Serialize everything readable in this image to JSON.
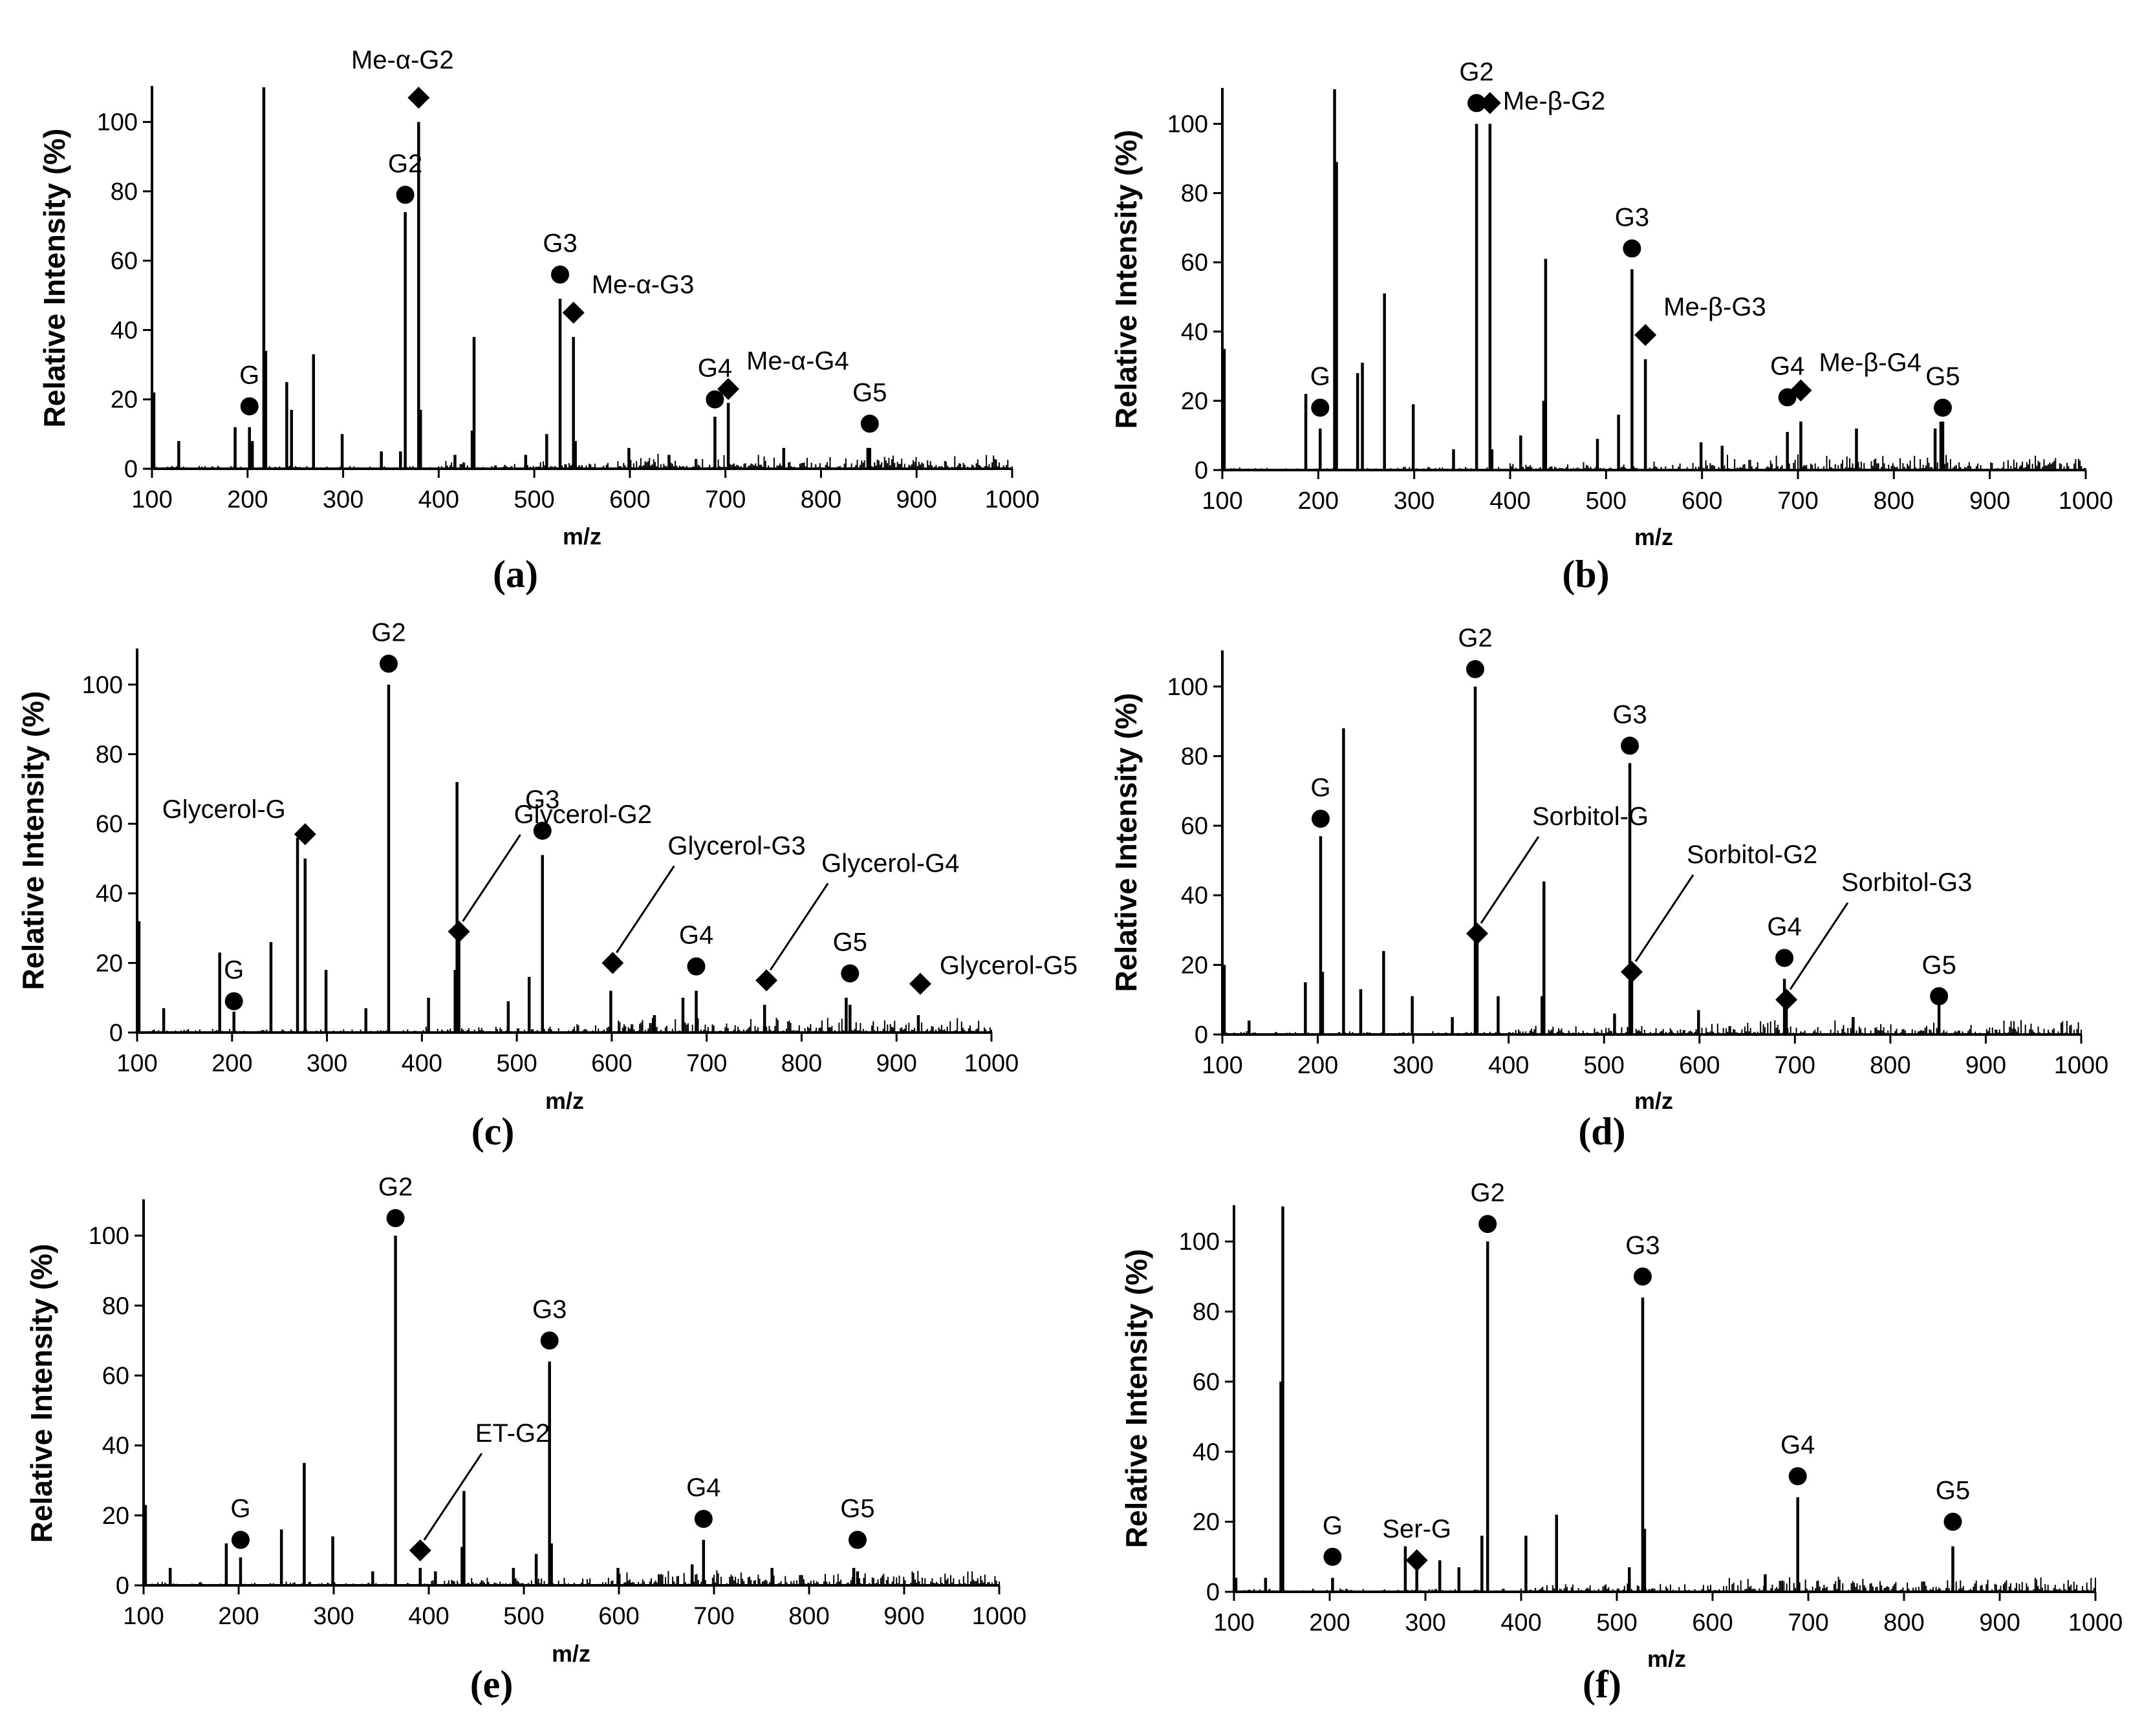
{
  "chart_data": [
    {
      "type": "bar",
      "panel_label": "(a)",
      "xlabel": "m/z",
      "ylabel": "Relative Intensity (%)",
      "xlim": [
        100,
        1000
      ],
      "ylim": [
        0,
        110
      ],
      "xticks": [
        100,
        200,
        300,
        400,
        500,
        600,
        700,
        800,
        900,
        1000
      ],
      "yticks": [
        0,
        20,
        40,
        60,
        80,
        100
      ],
      "peaks": [
        [
          102,
          22
        ],
        [
          128,
          8
        ],
        [
          187,
          12
        ],
        [
          202,
          12
        ],
        [
          205,
          8
        ],
        [
          217,
          110
        ],
        [
          219,
          34
        ],
        [
          241,
          25
        ],
        [
          246,
          17
        ],
        [
          269,
          33
        ],
        [
          299,
          10
        ],
        [
          340,
          5
        ],
        [
          360,
          5
        ],
        [
          365,
          74
        ],
        [
          379,
          100
        ],
        [
          381,
          17
        ],
        [
          417,
          4
        ],
        [
          435,
          11
        ],
        [
          437,
          38
        ],
        [
          491,
          4
        ],
        [
          513,
          10
        ],
        [
          527,
          49
        ],
        [
          541,
          38
        ],
        [
          543,
          8
        ],
        [
          599,
          6
        ],
        [
          641,
          4
        ],
        [
          689,
          15
        ],
        [
          703,
          19
        ],
        [
          761,
          6
        ],
        [
          849,
          6
        ],
        [
          851,
          6
        ]
      ],
      "annotations": [
        {
          "label": "G",
          "marker": "circle",
          "x": 202,
          "y": 18
        },
        {
          "label": "G2",
          "marker": "circle",
          "x": 365,
          "y": 79
        },
        {
          "label": "Me-α-G2",
          "marker": "diamond",
          "x": 379,
          "y": 107
        },
        {
          "label": "G3",
          "marker": "circle",
          "x": 527,
          "y": 56
        },
        {
          "label": "Me-α-G3",
          "marker": "diamond",
          "x": 541,
          "y": 45
        },
        {
          "label": "G4",
          "marker": "circle",
          "x": 689,
          "y": 20
        },
        {
          "label": "Me-α-G4",
          "marker": "diamond",
          "x": 703,
          "y": 23
        },
        {
          "label": "G5",
          "marker": "circle",
          "x": 851,
          "y": 13
        }
      ]
    },
    {
      "type": "bar",
      "panel_label": "(b)",
      "xlabel": "m/z",
      "ylabel": "Relative Intensity (%)",
      "xlim": [
        100,
        1000
      ],
      "ylim": [
        0,
        110
      ],
      "xticks": [
        100,
        200,
        300,
        400,
        500,
        600,
        700,
        800,
        900,
        1000
      ],
      "yticks": [
        0,
        20,
        40,
        60,
        80,
        100
      ],
      "peaks": [
        [
          102,
          35
        ],
        [
          187,
          22
        ],
        [
          202,
          12
        ],
        [
          217,
          110
        ],
        [
          219,
          89
        ],
        [
          241,
          28
        ],
        [
          246,
          31
        ],
        [
          269,
          51
        ],
        [
          299,
          19
        ],
        [
          341,
          6
        ],
        [
          365,
          100
        ],
        [
          379,
          100
        ],
        [
          381,
          6
        ],
        [
          411,
          10
        ],
        [
          435,
          20
        ],
        [
          437,
          61
        ],
        [
          491,
          9
        ],
        [
          513,
          16
        ],
        [
          527,
          58
        ],
        [
          541,
          32
        ],
        [
          599,
          8
        ],
        [
          621,
          7
        ],
        [
          689,
          11
        ],
        [
          703,
          14
        ],
        [
          761,
          12
        ],
        [
          843,
          12
        ],
        [
          849,
          14
        ],
        [
          851,
          14
        ]
      ],
      "annotations": [
        {
          "label": "G",
          "marker": "circle",
          "x": 202,
          "y": 18
        },
        {
          "label": "G2",
          "marker": "circle",
          "x": 365,
          "y": 106
        },
        {
          "label": "Me-β-G2",
          "marker": "diamond",
          "x": 379,
          "y": 106
        },
        {
          "label": "G3",
          "marker": "circle",
          "x": 527,
          "y": 64
        },
        {
          "label": "Me-β-G3",
          "marker": "diamond",
          "x": 541,
          "y": 39
        },
        {
          "label": "G4",
          "marker": "circle",
          "x": 689,
          "y": 21
        },
        {
          "label": "Me-β-G4",
          "marker": "diamond",
          "x": 703,
          "y": 23
        },
        {
          "label": "G5",
          "marker": "circle",
          "x": 851,
          "y": 18
        }
      ]
    },
    {
      "type": "bar",
      "panel_label": "(c)",
      "xlabel": "m/z",
      "ylabel": "Relative Intensity (%)",
      "xlim": [
        100,
        1000
      ],
      "ylim": [
        0,
        110
      ],
      "xticks": [
        100,
        200,
        300,
        400,
        500,
        600,
        700,
        800,
        900,
        1000
      ],
      "yticks": [
        0,
        20,
        40,
        60,
        80,
        100
      ],
      "peaks": [
        [
          102,
          32
        ],
        [
          128,
          7
        ],
        [
          187,
          23
        ],
        [
          202,
          6
        ],
        [
          241,
          26
        ],
        [
          269,
          56
        ],
        [
          277,
          50
        ],
        [
          299,
          18
        ],
        [
          341,
          7
        ],
        [
          365,
          100
        ],
        [
          407,
          10
        ],
        [
          435,
          18
        ],
        [
          437,
          72
        ],
        [
          439,
          30
        ],
        [
          491,
          9
        ],
        [
          513,
          16
        ],
        [
          527,
          51
        ],
        [
          599,
          12
        ],
        [
          645,
          5
        ],
        [
          675,
          10
        ],
        [
          689,
          12
        ],
        [
          761,
          8
        ],
        [
          847,
          10
        ],
        [
          851,
          8
        ],
        [
          923,
          5
        ]
      ],
      "annotations": [
        {
          "label": "G",
          "marker": "circle",
          "x": 202,
          "y": 9
        },
        {
          "label": "Glycerol-G",
          "marker": "diamond",
          "x": 277,
          "y": 57,
          "leader": false
        },
        {
          "label": "G2",
          "marker": "circle",
          "x": 365,
          "y": 106
        },
        {
          "label": "Glycerol-G2",
          "marker": "diamond",
          "x": 439,
          "y": 29,
          "leader": true
        },
        {
          "label": "G3",
          "marker": "circle",
          "x": 527,
          "y": 58
        },
        {
          "label": "Glycerol-G3",
          "marker": "diamond",
          "x": 601,
          "y": 20,
          "leader": true
        },
        {
          "label": "G4",
          "marker": "circle",
          "x": 689,
          "y": 19
        },
        {
          "label": "Glycerol-G4",
          "marker": "diamond",
          "x": 763,
          "y": 15,
          "leader": true
        },
        {
          "label": "G5",
          "marker": "circle",
          "x": 851,
          "y": 17
        },
        {
          "label": "Glycerol-G5",
          "marker": "diamond",
          "x": 925,
          "y": 14,
          "leader": false
        }
      ]
    },
    {
      "type": "bar",
      "panel_label": "(d)",
      "xlabel": "m/z",
      "ylabel": "Relative Intensity (%)",
      "xlim": [
        100,
        1000
      ],
      "ylim": [
        0,
        110
      ],
      "xticks": [
        100,
        200,
        300,
        400,
        500,
        600,
        700,
        800,
        900,
        1000
      ],
      "yticks": [
        0,
        20,
        40,
        60,
        80,
        100
      ],
      "peaks": [
        [
          102,
          20
        ],
        [
          128,
          4
        ],
        [
          187,
          15
        ],
        [
          203,
          57
        ],
        [
          205,
          18
        ],
        [
          227,
          88
        ],
        [
          245,
          13
        ],
        [
          269,
          24
        ],
        [
          299,
          11
        ],
        [
          341,
          5
        ],
        [
          365,
          100
        ],
        [
          367,
          30
        ],
        [
          389,
          11
        ],
        [
          435,
          11
        ],
        [
          437,
          44
        ],
        [
          511,
          6
        ],
        [
          527,
          78
        ],
        [
          529,
          18
        ],
        [
          599,
          7
        ],
        [
          689,
          16
        ],
        [
          691,
          10
        ],
        [
          761,
          5
        ],
        [
          851,
          9
        ]
      ],
      "annotations": [
        {
          "label": "G",
          "marker": "circle",
          "x": 203,
          "y": 62
        },
        {
          "label": "G2",
          "marker": "circle",
          "x": 365,
          "y": 105
        },
        {
          "label": "Sorbitol-G",
          "marker": "diamond",
          "x": 367,
          "y": 29,
          "leader": true
        },
        {
          "label": "G3",
          "marker": "circle",
          "x": 527,
          "y": 83
        },
        {
          "label": "Sorbitol-G2",
          "marker": "diamond",
          "x": 529,
          "y": 18,
          "leader": true
        },
        {
          "label": "G4",
          "marker": "circle",
          "x": 689,
          "y": 22
        },
        {
          "label": "Sorbitol-G3",
          "marker": "diamond",
          "x": 691,
          "y": 10,
          "leader": true
        },
        {
          "label": "G5",
          "marker": "circle",
          "x": 851,
          "y": 11
        }
      ]
    },
    {
      "type": "bar",
      "panel_label": "(e)",
      "xlabel": "m/z",
      "ylabel": "Relative Intensity (%)",
      "xlim": [
        100,
        1000
      ],
      "ylim": [
        0,
        110
      ],
      "xticks": [
        100,
        200,
        300,
        400,
        500,
        600,
        700,
        800,
        900,
        1000
      ],
      "yticks": [
        0,
        20,
        40,
        60,
        80,
        100
      ],
      "peaks": [
        [
          102,
          23
        ],
        [
          128,
          5
        ],
        [
          187,
          12
        ],
        [
          202,
          8
        ],
        [
          245,
          16
        ],
        [
          269,
          35
        ],
        [
          299,
          14
        ],
        [
          341,
          4
        ],
        [
          365,
          100
        ],
        [
          391,
          5
        ],
        [
          407,
          4
        ],
        [
          435,
          11
        ],
        [
          437,
          27
        ],
        [
          489,
          5
        ],
        [
          513,
          9
        ],
        [
          527,
          64
        ],
        [
          529,
          12
        ],
        [
          599,
          5
        ],
        [
          677,
          6
        ],
        [
          689,
          13
        ],
        [
          761,
          5
        ],
        [
          847,
          5
        ],
        [
          851,
          4
        ]
      ],
      "annotations": [
        {
          "label": "G",
          "marker": "circle",
          "x": 202,
          "y": 13
        },
        {
          "label": "G2",
          "marker": "circle",
          "x": 365,
          "y": 105
        },
        {
          "label": "ET-G2",
          "marker": "diamond",
          "x": 391,
          "y": 10,
          "leader": true
        },
        {
          "label": "G3",
          "marker": "circle",
          "x": 527,
          "y": 70
        },
        {
          "label": "G4",
          "marker": "circle",
          "x": 689,
          "y": 19
        },
        {
          "label": "G5",
          "marker": "circle",
          "x": 851,
          "y": 13
        }
      ]
    },
    {
      "type": "bar",
      "panel_label": "(f)",
      "xlabel": "m/z",
      "ylabel": "Relative Intensity (%)",
      "xlim": [
        100,
        1000
      ],
      "ylim": [
        0,
        110
      ],
      "xticks": [
        100,
        200,
        300,
        400,
        500,
        600,
        700,
        800,
        900,
        1000
      ],
      "yticks": [
        0,
        20,
        40,
        60,
        80,
        100
      ],
      "peaks": [
        [
          102,
          4
        ],
        [
          133,
          4
        ],
        [
          149,
          60
        ],
        [
          151,
          110
        ],
        [
          203,
          4
        ],
        [
          279,
          13
        ],
        [
          291,
          7
        ],
        [
          315,
          9
        ],
        [
          335,
          7
        ],
        [
          359,
          16
        ],
        [
          365,
          100
        ],
        [
          405,
          16
        ],
        [
          437,
          22
        ],
        [
          513,
          7
        ],
        [
          527,
          84
        ],
        [
          529,
          18
        ],
        [
          655,
          5
        ],
        [
          689,
          27
        ],
        [
          851,
          13
        ]
      ],
      "annotations": [
        {
          "label": "G",
          "marker": "circle",
          "x": 203,
          "y": 10
        },
        {
          "label": "Ser-G",
          "marker": "diamond",
          "x": 291,
          "y": 9
        },
        {
          "label": "G2",
          "marker": "circle",
          "x": 365,
          "y": 105
        },
        {
          "label": "G3",
          "marker": "circle",
          "x": 527,
          "y": 90
        },
        {
          "label": "G4",
          "marker": "circle",
          "x": 689,
          "y": 33
        },
        {
          "label": "G5",
          "marker": "circle",
          "x": 851,
          "y": 20
        }
      ]
    }
  ]
}
